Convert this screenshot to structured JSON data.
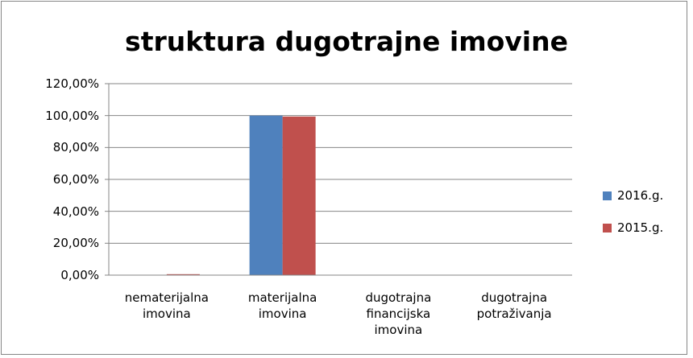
{
  "chart_data": {
    "type": "bar",
    "title": "struktura dugotrajne imovine",
    "categories": [
      "nematerijalna imovina",
      "materijalna imovina",
      "dugotrajna financijska imovina",
      "dugotrajna potraživanja"
    ],
    "series": [
      {
        "name": "2016.g.",
        "color": "#4f81bd",
        "values": [
          0,
          100,
          0,
          0
        ]
      },
      {
        "name": "2015.g.",
        "color": "#c0504d",
        "values": [
          0.6,
          99.4,
          0,
          0
        ]
      }
    ],
    "ylim": [
      0,
      120
    ],
    "yticks": [
      {
        "value": 0,
        "label": "0,00%"
      },
      {
        "value": 20,
        "label": "20,00%"
      },
      {
        "value": 40,
        "label": "40,00%"
      },
      {
        "value": 60,
        "label": "60,00%"
      },
      {
        "value": 80,
        "label": "80,00%"
      },
      {
        "value": 100,
        "label": "100,00%"
      },
      {
        "value": 120,
        "label": "120,00%"
      }
    ],
    "grid": true,
    "legend": "right"
  }
}
